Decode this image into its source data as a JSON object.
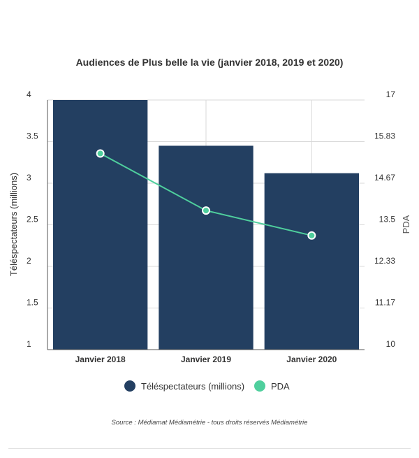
{
  "chart_data": {
    "type": "bar",
    "title": "Audiences de Plus belle la vie (janvier 2018, 2019 et 2020)",
    "categories": [
      "Janvier 2018",
      "Janvier 2019",
      "Janvier 2020"
    ],
    "series": [
      {
        "name": "Téléspectateurs (millions)",
        "type": "bar",
        "axis": "left",
        "values": [
          4.0,
          3.45,
          3.12
        ],
        "color": "#233f61"
      },
      {
        "name": "PDA",
        "type": "line",
        "axis": "right",
        "values": [
          15.5,
          13.9,
          13.2
        ],
        "color": "#4fcf9d"
      }
    ],
    "ylabel": "Téléspectateurs (millions)",
    "ylabel_right": "PDA",
    "ylim": [
      1,
      4
    ],
    "ylim_right": [
      10,
      17
    ],
    "yticks": [
      "1",
      "1.5",
      "2",
      "2.5",
      "3",
      "3.5",
      "4"
    ],
    "yticks_right": [
      "10",
      "11.17",
      "12.33",
      "13.5",
      "14.67",
      "15.83",
      "17"
    ],
    "grid": true,
    "legend": "bottom",
    "source": "Source : Médiamat Médiamétrie - tous droits réservés Médiamétrie"
  }
}
